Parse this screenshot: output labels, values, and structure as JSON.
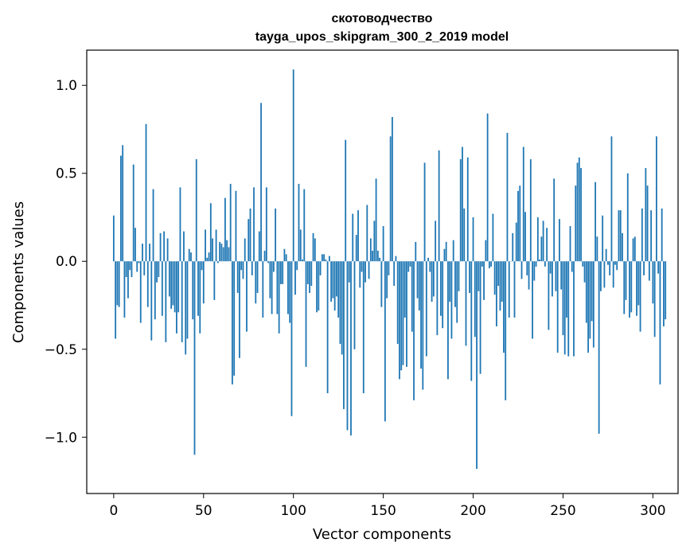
{
  "chart_data": {
    "type": "bar",
    "title_line1": "скотоводчество",
    "title_line2": "tayga_upos_skipgram_300_2_2019 model",
    "xlabel": "Vector components",
    "ylabel": "Components values",
    "xlim": [
      -15,
      314
    ],
    "ylim": [
      -1.32,
      1.2
    ],
    "xticks": [
      0,
      50,
      100,
      150,
      200,
      250,
      300
    ],
    "xtick_labels": [
      "0",
      "50",
      "100",
      "150",
      "200",
      "250",
      "300"
    ],
    "yticks": [
      -1.0,
      -0.5,
      0.0,
      0.5,
      1.0
    ],
    "ytick_labels": [
      "−1.0",
      "−0.5",
      "0.0",
      "0.5",
      "1.0"
    ],
    "color": "#1f77b4",
    "values": [
      0.26,
      -0.44,
      -0.25,
      -0.26,
      0.6,
      0.66,
      -0.32,
      -0.09,
      -0.21,
      -0.05,
      -0.09,
      0.55,
      0.19,
      -0.06,
      -0.01,
      -0.35,
      0.1,
      -0.08,
      0.78,
      -0.26,
      0.1,
      -0.45,
      0.41,
      -0.33,
      -0.12,
      -0.09,
      0.16,
      -0.31,
      0.17,
      -0.46,
      0.13,
      -0.2,
      -0.27,
      -0.25,
      -0.29,
      -0.41,
      -0.29,
      0.42,
      -0.46,
      0.17,
      -0.53,
      -0.44,
      0.07,
      0.05,
      -0.33,
      -1.1,
      0.58,
      -0.31,
      -0.41,
      -0.05,
      -0.24,
      0.18,
      0.02,
      0.05,
      0.33,
      0.13,
      -0.22,
      0.18,
      -0.01,
      0.11,
      0.1,
      0.08,
      0.36,
      0.12,
      0.08,
      0.44,
      -0.7,
      -0.65,
      0.4,
      -0.18,
      -0.55,
      -0.05,
      -0.1,
      0.13,
      -0.4,
      0.24,
      0.3,
      -0.08,
      0.42,
      -0.24,
      -0.18,
      0.17,
      0.9,
      -0.32,
      0.06,
      0.42,
      -0.01,
      -0.21,
      -0.3,
      -0.06,
      0.3,
      -0.3,
      -0.41,
      -0.13,
      -0.13,
      0.07,
      0.04,
      -0.3,
      -0.35,
      -0.88,
      1.09,
      -0.19,
      -0.05,
      0.44,
      0.18,
      0.01,
      0.41,
      -0.6,
      -0.13,
      -0.18,
      -0.14,
      0.16,
      0.13,
      -0.29,
      -0.28,
      -0.08,
      0.04,
      0.04,
      0.01,
      -0.75,
      0.03,
      -0.23,
      -0.21,
      -0.28,
      -0.2,
      -0.32,
      -0.47,
      -0.53,
      -0.84,
      0.69,
      -0.96,
      -0.12,
      -0.99,
      0.27,
      -0.5,
      0.15,
      0.29,
      -0.15,
      -0.06,
      -0.75,
      -0.12,
      0.32,
      -0.1,
      0.13,
      0.06,
      0.23,
      0.47,
      0.06,
      0.02,
      -0.26,
      0.2,
      -0.91,
      -0.21,
      -0.08,
      0.71,
      0.82,
      -0.14,
      0.03,
      -0.47,
      -0.67,
      -0.62,
      -0.59,
      -0.32,
      -0.6,
      -0.06,
      -0.03,
      -0.4,
      -0.79,
      0.11,
      -0.21,
      -0.28,
      -0.61,
      -0.73,
      0.56,
      -0.54,
      0.02,
      -0.06,
      -0.23,
      -0.2,
      0.23,
      -0.42,
      0.63,
      -0.31,
      -0.38,
      0.07,
      0.11,
      -0.67,
      -0.23,
      -0.44,
      0.12,
      -0.26,
      -0.35,
      -0.17,
      0.58,
      0.65,
      0.3,
      -0.48,
      0.59,
      -0.18,
      -0.68,
      0.25,
      -0.43,
      -1.18,
      -0.17,
      -0.64,
      -0.03,
      -0.22,
      0.12,
      0.84,
      -0.04,
      -0.03,
      0.27,
      -0.19,
      -0.37,
      -0.14,
      -0.28,
      -0.23,
      -0.52,
      -0.79,
      0.73,
      -0.32,
      0.0,
      0.16,
      -0.32,
      0.22,
      0.4,
      0.43,
      -0.1,
      0.65,
      0.28,
      -0.08,
      -0.16,
      0.58,
      -0.44,
      -0.11,
      -0.03,
      0.25,
      0.01,
      0.14,
      0.23,
      -0.03,
      0.19,
      -0.39,
      -0.07,
      -0.2,
      0.47,
      -0.17,
      -0.52,
      0.24,
      -0.16,
      -0.42,
      -0.53,
      -0.32,
      -0.54,
      0.2,
      -0.06,
      -0.54,
      0.43,
      0.56,
      0.59,
      0.53,
      -0.03,
      -0.12,
      -0.35,
      -0.52,
      -0.44,
      -0.34,
      -0.49,
      0.45,
      0.14,
      -0.98,
      -0.17,
      0.26,
      -0.15,
      0.07,
      -0.02,
      -0.08,
      0.71,
      -0.15,
      -0.02,
      -0.05,
      0.29,
      0.29,
      0.16,
      -0.3,
      -0.22,
      0.5,
      -0.32,
      -0.29,
      0.13,
      0.14,
      -0.31,
      -0.25,
      -0.4,
      0.3,
      -0.08,
      0.53,
      0.43,
      -0.11,
      0.29,
      -0.24,
      -0.43,
      0.71,
      -0.07,
      -0.7,
      0.3,
      -0.37,
      -0.33
    ]
  }
}
